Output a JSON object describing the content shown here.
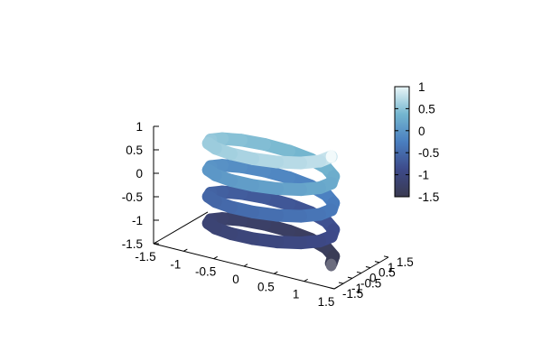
{
  "chart_data": {
    "type": "line",
    "subtype": "3d-parametric-tube",
    "title": "",
    "xlabel": "",
    "ylabel": "",
    "zlabel": "",
    "xlim": [
      -1.5,
      1.5
    ],
    "ylim": [
      -1.5,
      1.5
    ],
    "zlim": [
      -1.5,
      1
    ],
    "x_ticks": [
      "-1.5",
      "-1",
      "-0.5",
      "0",
      "0.5",
      "1",
      "1.5"
    ],
    "y_ticks": [
      "-1.5",
      "-1",
      "-0.5",
      "0",
      "0.5",
      "1",
      "1.5"
    ],
    "z_ticks": [
      "-1.5",
      "-1",
      "-0.5",
      "0",
      "0.5",
      "1"
    ],
    "colorbar": {
      "range": [
        -1.5,
        1
      ],
      "ticks": [
        "-1.5",
        "-1",
        "-0.5",
        "0",
        "0.5",
        "1"
      ],
      "colors": [
        "#3a3a50",
        "#3d4a8a",
        "#4a7fc0",
        "#74b6cf",
        "#eaf6f8"
      ]
    },
    "helix": {
      "radius": 1,
      "turns": 4,
      "z_start": -1.45,
      "z_end": 0.82,
      "color_by": "z"
    },
    "grid": false,
    "legend": "none"
  }
}
